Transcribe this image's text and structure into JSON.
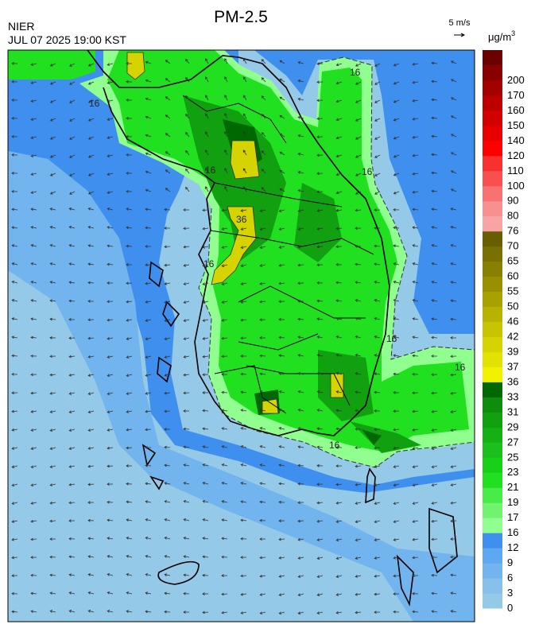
{
  "title": "PM-2.5",
  "agency": "NIER",
  "timestamp": "JUL 07 2025 19:00 KST",
  "wind_scale": "5 m/s",
  "unit": {
    "base": "μg/m",
    "sup": "3"
  },
  "colorbar": {
    "levels": [
      {
        "label": "0",
        "color": "#95c9e8"
      },
      {
        "label": "3",
        "color": "#87c0ea"
      },
      {
        "label": "6",
        "color": "#72b4ee"
      },
      {
        "label": "9",
        "color": "#5ea8f0"
      },
      {
        "label": "12",
        "color": "#3f90ee"
      },
      {
        "label": "16",
        "color": "#90ff90"
      },
      {
        "label": "17",
        "color": "#70f470"
      },
      {
        "label": "19",
        "color": "#48ec48"
      },
      {
        "label": "21",
        "color": "#20e020"
      },
      {
        "label": "23",
        "color": "#18d018"
      },
      {
        "label": "25",
        "color": "#1cc01c"
      },
      {
        "label": "27",
        "color": "#14b014"
      },
      {
        "label": "29",
        "color": "#10a010"
      },
      {
        "label": "31",
        "color": "#0e8c0e"
      },
      {
        "label": "33",
        "color": "#006800"
      },
      {
        "label": "36",
        "color": "#f2f200"
      },
      {
        "label": "37",
        "color": "#e2e200"
      },
      {
        "label": "39",
        "color": "#d6d400"
      },
      {
        "label": "42",
        "color": "#c8c400"
      },
      {
        "label": "46",
        "color": "#b8b200"
      },
      {
        "label": "50",
        "color": "#a8a200"
      },
      {
        "label": "55",
        "color": "#989000"
      },
      {
        "label": "60",
        "color": "#888000"
      },
      {
        "label": "65",
        "color": "#787000"
      },
      {
        "label": "70",
        "color": "#665e00"
      },
      {
        "label": "76",
        "color": "#f8a4a4"
      },
      {
        "label": "80",
        "color": "#f89090"
      },
      {
        "label": "90",
        "color": "#f87272"
      },
      {
        "label": "100",
        "color": "#f85050"
      },
      {
        "label": "110",
        "color": "#f83030"
      },
      {
        "label": "120",
        "color": "#ff0000"
      },
      {
        "label": "140",
        "color": "#e80000"
      },
      {
        "label": "150",
        "color": "#d20000"
      },
      {
        "label": "160",
        "color": "#bc0000"
      },
      {
        "label": "170",
        "color": "#a40000"
      },
      {
        "label": "200",
        "color": "#880000"
      }
    ],
    "top_color": "#6a0000"
  },
  "contour_labels": [
    "16",
    "16",
    "16",
    "16",
    "36",
    "16",
    "16",
    "16",
    "16"
  ]
}
